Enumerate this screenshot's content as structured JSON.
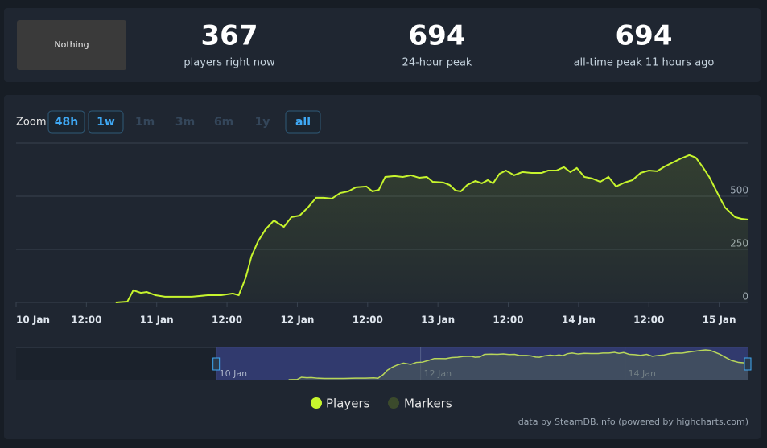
{
  "stats": {
    "image_label": "Nothing",
    "items": [
      {
        "value": 367,
        "label": "players right now"
      },
      {
        "value": 694,
        "label": "24-hour peak"
      },
      {
        "value": 694,
        "label": "all-time peak 11 hours ago"
      }
    ]
  },
  "zoom": {
    "label": "Zoom",
    "buttons": [
      {
        "label": "48h",
        "enabled": true
      },
      {
        "label": "1w",
        "enabled": true
      },
      {
        "label": "1m",
        "enabled": false
      },
      {
        "label": "3m",
        "enabled": false
      },
      {
        "label": "6m",
        "enabled": false
      },
      {
        "label": "1y",
        "enabled": false
      },
      {
        "label": "all",
        "enabled": true
      }
    ]
  },
  "chart_data": {
    "type": "line",
    "x": [
      17,
      19,
      20,
      21.3,
      22.3,
      23.8,
      25.4,
      27.5,
      30,
      32.7,
      35,
      37,
      38,
      39.2,
      40.2,
      41.3,
      42.6,
      44,
      45.7,
      47,
      48.4,
      49.8,
      51.2,
      52.5,
      53.9,
      55.3,
      56.7,
      58,
      59.8,
      60.8,
      61.9,
      63,
      64.6,
      66,
      67.4,
      68.8,
      70.1,
      71.1,
      72.9,
      74,
      75,
      75.9,
      77,
      78.4,
      79.5,
      80.5,
      81.4,
      82.5,
      83.6,
      85,
      86.4,
      88,
      89.7,
      90.8,
      92.2,
      93.5,
      94.6,
      95.7,
      97,
      98.3,
      99.7,
      101.1,
      102.4,
      103.9,
      105.2,
      106.6,
      108,
      109.4,
      110.7,
      112.1,
      113.5,
      114.9,
      116,
      117.2,
      118.3,
      119.7,
      121,
      122.7,
      123.8,
      125
    ],
    "series": [
      {
        "name": "Players",
        "color": "#c7f52d",
        "values": [
          0,
          4,
          57,
          45,
          49,
          34,
          27,
          27,
          27,
          34,
          34,
          42,
          34,
          117,
          220,
          288,
          345,
          386,
          356,
          402,
          409,
          447,
          493,
          493,
          489,
          515,
          523,
          542,
          546,
          523,
          530,
          591,
          595,
          591,
          599,
          587,
          591,
          568,
          565,
          553,
          527,
          523,
          553,
          572,
          561,
          576,
          561,
          606,
          621,
          599,
          614,
          610,
          610,
          621,
          621,
          637,
          614,
          633,
          591,
          584,
          568,
          591,
          546,
          565,
          576,
          610,
          621,
          618,
          640,
          659,
          678,
          694,
          682,
          637,
          591,
          515,
          447,
          402,
          394,
          390
        ]
      }
    ],
    "markers": {
      "name": "Markers",
      "color": "#3b4a2c"
    },
    "xlim": [
      0,
      125
    ],
    "xticks": [
      {
        "value": 0,
        "label": "10 Jan"
      },
      {
        "value": 12,
        "label": "12:00"
      },
      {
        "value": 24,
        "label": "11 Jan"
      },
      {
        "value": 36,
        "label": "12:00"
      },
      {
        "value": 48,
        "label": "12 Jan"
      },
      {
        "value": 60,
        "label": "12:00"
      },
      {
        "value": 72,
        "label": "13 Jan"
      },
      {
        "value": 84,
        "label": "12:00"
      },
      {
        "value": 96,
        "label": "14 Jan"
      },
      {
        "value": 108,
        "label": "12:00"
      },
      {
        "value": 120,
        "label": "15 Jan"
      }
    ],
    "ylim": [
      0,
      750
    ],
    "yticks": [
      0,
      250,
      500
    ],
    "grid": true,
    "navigator": {
      "xlim": [
        -47,
        125
      ],
      "xticks": [
        {
          "value": 0,
          "label": "10 Jan"
        },
        {
          "value": 48,
          "label": "12 Jan"
        },
        {
          "value": 96,
          "label": "14 Jan"
        }
      ]
    },
    "credits": "data by SteamDB.info (powered by highcharts.com)"
  }
}
